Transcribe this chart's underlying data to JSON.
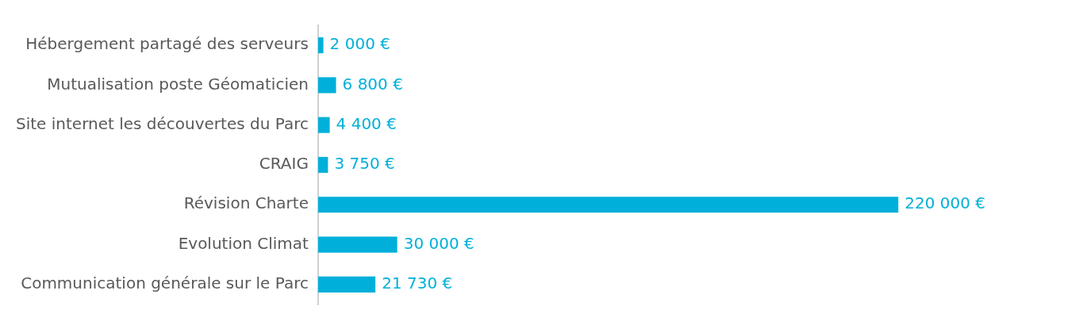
{
  "chart_data": {
    "type": "bar",
    "orientation": "horizontal",
    "categories": [
      "Hébergement partagé des serveurs",
      "Mutualisation poste Géomaticien",
      "Site internet les découvertes du Parc",
      "CRAIG",
      "Révision Charte",
      "Evolution Climat",
      "Communication générale sur le Parc"
    ],
    "values": [
      2000,
      6800,
      4400,
      3750,
      220000,
      30000,
      21730
    ],
    "value_labels": [
      "2 000 €",
      "6 800 €",
      "4 400 €",
      "3 750 €",
      "220 000 €",
      "30 000 €",
      "21 730 €"
    ],
    "color": "#00b0da",
    "legend": false
  }
}
